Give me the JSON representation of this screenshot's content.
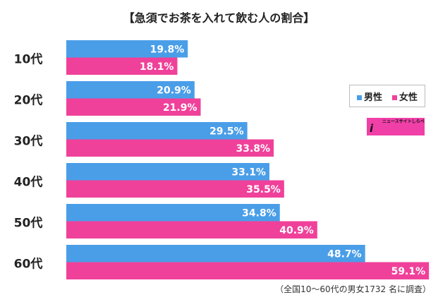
{
  "chart_data": {
    "type": "bar",
    "orientation": "horizontal",
    "title": "【急須でお茶を入れて飲む人の割合】",
    "categories": [
      "10代",
      "20代",
      "30代",
      "40代",
      "50代",
      "60代"
    ],
    "series": [
      {
        "name": "男性",
        "color": "#4a9ee8",
        "values": [
          19.8,
          20.9,
          29.5,
          33.1,
          34.8,
          48.7
        ]
      },
      {
        "name": "女性",
        "color": "#f0419a",
        "values": [
          18.1,
          21.9,
          33.8,
          35.5,
          40.9,
          59.1
        ]
      }
    ],
    "value_suffix": "%",
    "xlim": [
      0,
      60
    ],
    "legend": "right",
    "note": "（全国10〜60代の男女1732 名に調査）"
  },
  "logo": {
    "text": "SIRABEE",
    "tagline": "ニュースサイトしらべぇ"
  }
}
